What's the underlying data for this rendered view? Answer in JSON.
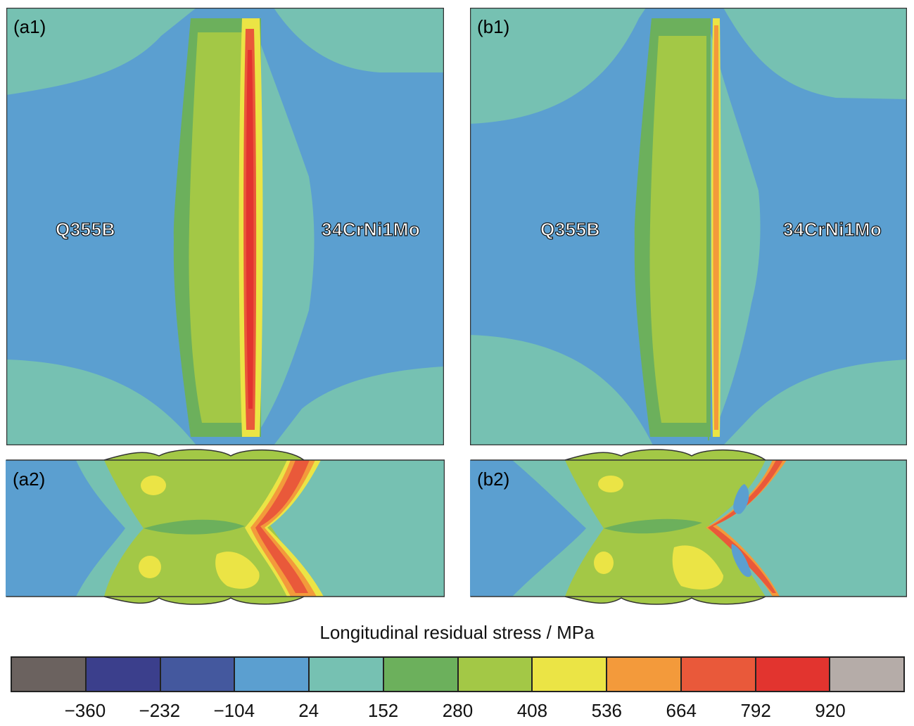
{
  "panels": {
    "a1": {
      "label": "(a1)",
      "left_material": "Q355B",
      "right_material": "34CrNi1Mo"
    },
    "b1": {
      "label": "(b1)",
      "left_material": "Q355B",
      "right_material": "34CrNi1Mo"
    },
    "a2": {
      "label": "(a2)"
    },
    "b2": {
      "label": "(b2)"
    }
  },
  "colorbar": {
    "title": "Longitudinal residual stress / MPa",
    "colors": [
      "#6b625f",
      "#3b3f8c",
      "#44589e",
      "#5b9fd0",
      "#76c1b2",
      "#6cb05c",
      "#a3c846",
      "#ebe445",
      "#f39a3b",
      "#e9593a",
      "#e2342f",
      "#b5aca8"
    ],
    "ticks": [
      "−360",
      "−232",
      "−104",
      "24",
      "152",
      "280",
      "408",
      "536",
      "664",
      "792",
      "920"
    ]
  }
}
